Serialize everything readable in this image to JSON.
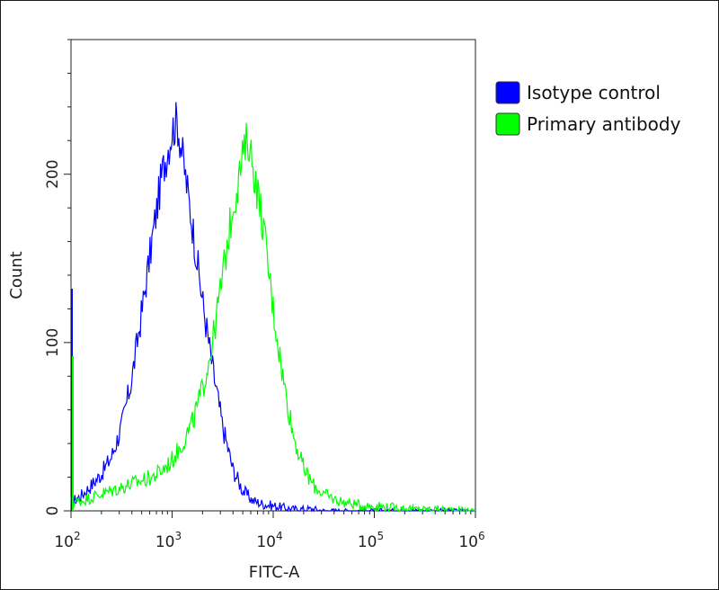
{
  "chart_data": {
    "type": "line",
    "xlabel": "FITC-A",
    "ylabel": "Count",
    "x_scale": "log",
    "xlim": [
      100,
      1000000
    ],
    "ylim": [
      0,
      280
    ],
    "grid": false,
    "legend_position": "outside-right-top",
    "x_ticks": [
      {
        "value": 100,
        "base": "10",
        "exp": "2"
      },
      {
        "value": 1000,
        "base": "10",
        "exp": "3"
      },
      {
        "value": 10000,
        "base": "10",
        "exp": "4"
      },
      {
        "value": 100000,
        "base": "10",
        "exp": "5"
      },
      {
        "value": 1000000,
        "base": "10",
        "exp": "6"
      }
    ],
    "y_ticks": [
      0,
      100,
      200
    ],
    "series": [
      {
        "name": "Isotype control",
        "color": "#0000ff",
        "points": [
          [
            100,
            5
          ],
          [
            126,
            9
          ],
          [
            158,
            15
          ],
          [
            200,
            22
          ],
          [
            251,
            32
          ],
          [
            316,
            50
          ],
          [
            398,
            78
          ],
          [
            501,
            118
          ],
          [
            631,
            160
          ],
          [
            794,
            200
          ],
          [
            1000,
            226
          ],
          [
            1122,
            232
          ],
          [
            1259,
            212
          ],
          [
            1585,
            170
          ],
          [
            1995,
            125
          ],
          [
            2512,
            85
          ],
          [
            3162,
            50
          ],
          [
            3981,
            25
          ],
          [
            5012,
            12
          ],
          [
            6310,
            6
          ],
          [
            7943,
            4
          ],
          [
            10000,
            3
          ],
          [
            12589,
            2
          ],
          [
            15849,
            1
          ],
          [
            19953,
            1
          ],
          [
            25119,
            1
          ],
          [
            31623,
            0
          ],
          [
            100000,
            0
          ],
          [
            1000000,
            0
          ]
        ]
      },
      {
        "name": "Primary antibody",
        "color": "#00ff00",
        "points": [
          [
            100,
            5
          ],
          [
            126,
            6
          ],
          [
            158,
            8
          ],
          [
            200,
            10
          ],
          [
            251,
            12
          ],
          [
            316,
            14
          ],
          [
            398,
            16
          ],
          [
            501,
            18
          ],
          [
            631,
            20
          ],
          [
            794,
            24
          ],
          [
            1000,
            30
          ],
          [
            1259,
            40
          ],
          [
            1585,
            52
          ],
          [
            1995,
            72
          ],
          [
            2512,
            100
          ],
          [
            3162,
            140
          ],
          [
            3981,
            180
          ],
          [
            5012,
            210
          ],
          [
            5623,
            222
          ],
          [
            6310,
            205
          ],
          [
            7943,
            170
          ],
          [
            10000,
            120
          ],
          [
            12589,
            78
          ],
          [
            15849,
            45
          ],
          [
            19953,
            25
          ],
          [
            25119,
            15
          ],
          [
            31623,
            10
          ],
          [
            39811,
            7
          ],
          [
            50119,
            5
          ],
          [
            63096,
            4
          ],
          [
            79433,
            3
          ],
          [
            100000,
            3
          ],
          [
            158489,
            2
          ],
          [
            251189,
            1
          ],
          [
            398107,
            1
          ],
          [
            1000000,
            0
          ]
        ]
      }
    ]
  }
}
